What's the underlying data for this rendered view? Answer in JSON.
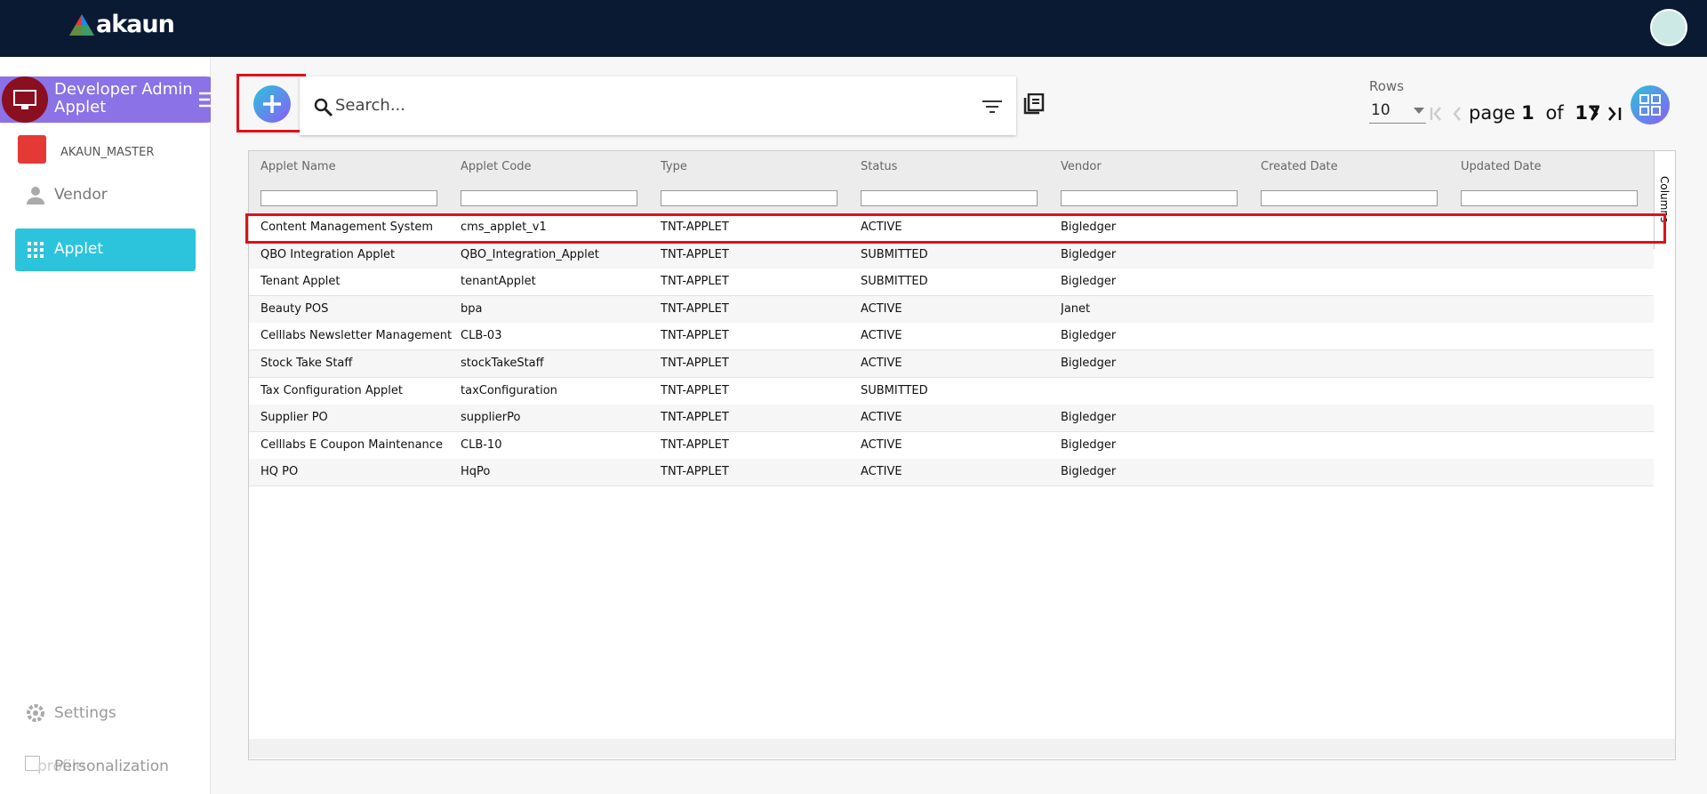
{
  "header": {
    "logo": "akaun"
  },
  "sidebar": {
    "applet_title": "Developer Admin Applet",
    "org": "AKAUN_MASTER",
    "menu": [
      "Vendor",
      "Applet"
    ],
    "settings": "Settings",
    "profile": "profile",
    "personalization": "Personalization"
  },
  "toolbar": {
    "search_placeholder": "Search...",
    "rows_label": "Rows",
    "rows_value": "10",
    "page_label": "page",
    "page": 1,
    "of_label": "of",
    "total_pages": 17
  },
  "table": {
    "columns": [
      "Applet Name",
      "Applet Code",
      "Type",
      "Status",
      "Vendor",
      "Created Date",
      "Updated Date"
    ],
    "rows": [
      [
        "Content Management System",
        "cms_applet_v1",
        "TNT-APPLET",
        "ACTIVE",
        "Bigledger"
      ],
      [
        "QBO Integration Applet",
        "QBO_Integration_Applet",
        "TNT-APPLET",
        "SUBMITTED",
        "Bigledger"
      ],
      [
        "Tenant Applet",
        "tenantApplet",
        "TNT-APPLET",
        "SUBMITTED",
        "Bigledger"
      ],
      [
        "Beauty POS",
        "bpa",
        "TNT-APPLET",
        "ACTIVE",
        "Janet"
      ],
      [
        "Celllabs Newsletter Management",
        "CLB-03",
        "TNT-APPLET",
        "ACTIVE",
        "Bigledger"
      ],
      [
        "Stock Take Staff",
        "stockTakeStaff",
        "TNT-APPLET",
        "ACTIVE",
        "Bigledger"
      ],
      [
        "Tax Configuration Applet",
        "taxConfiguration",
        "TNT-APPLET",
        "SUBMITTED",
        null
      ],
      [
        "Supplier PO",
        "supplierPo",
        "TNT-APPLET",
        "ACTIVE",
        "Bigledger"
      ],
      [
        "Celllabs E Coupon Maintenance",
        "CLB-10",
        "TNT-APPLET",
        "ACTIVE",
        "Bigledger"
      ],
      [
        "HQ PO",
        "HqPo",
        "TNT-APPLET",
        "ACTIVE",
        "Bigledger"
      ]
    ],
    "side_panel": "Columns"
  }
}
